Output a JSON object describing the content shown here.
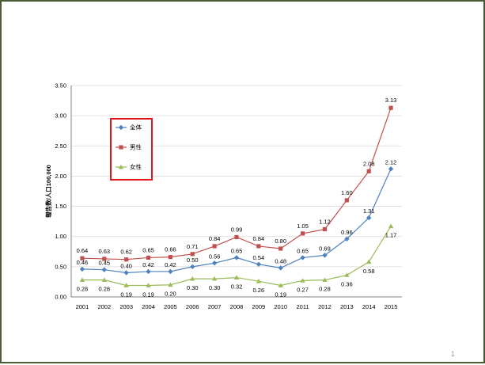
{
  "page_number": "1",
  "chart_data": {
    "type": "line",
    "ylabel": "報告数/人口100,000",
    "ylim": [
      0,
      3.5
    ],
    "ytick_labels": [
      "0.00",
      "0.50",
      "1.00",
      "1.50",
      "2.00",
      "2.50",
      "3.00",
      "3.50"
    ],
    "x": [
      "2001",
      "2002",
      "2003",
      "2004",
      "2005",
      "2006",
      "2007",
      "2008",
      "2009",
      "2010",
      "2011",
      "2012",
      "2013",
      "2014",
      "2015"
    ],
    "grid": true,
    "legend_position": "top-left",
    "series": [
      {
        "name": "全体",
        "color": "#4f81bd",
        "marker": "diamond",
        "values": [
          0.46,
          0.45,
          0.4,
          0.42,
          0.42,
          0.5,
          0.56,
          0.65,
          0.54,
          0.48,
          0.65,
          0.69,
          0.96,
          1.31,
          2.12
        ],
        "labels": [
          "0.46",
          "0.45",
          "0.40",
          "0.42",
          "0.42",
          "0.50",
          "0.56",
          "0.65",
          "0.54",
          "0.48",
          "0.65",
          "0.69",
          "0.96",
          "1.31",
          "2.12"
        ]
      },
      {
        "name": "男性",
        "color": "#c0504d",
        "marker": "square",
        "values": [
          0.64,
          0.63,
          0.62,
          0.65,
          0.66,
          0.71,
          0.84,
          0.99,
          0.84,
          0.8,
          1.05,
          1.12,
          1.6,
          2.08,
          3.13
        ],
        "labels": [
          "0.64",
          "0.63",
          "0.62",
          "0.65",
          "0.66",
          "0.71",
          "0.84",
          "0.99",
          "0.84",
          "0.80",
          "1.05",
          "1.12",
          "1.60",
          "2.08",
          "3.13"
        ]
      },
      {
        "name": "女性",
        "color": "#9bbb59",
        "marker": "triangle",
        "values": [
          0.28,
          0.28,
          0.19,
          0.19,
          0.2,
          0.3,
          0.3,
          0.32,
          0.26,
          0.19,
          0.27,
          0.28,
          0.36,
          0.58,
          1.17
        ],
        "labels": [
          "0.28",
          "0.28",
          "0.19",
          "0.19",
          "0.20",
          "0.30",
          "0.30",
          "0.32",
          "0.26",
          "0.19",
          "0.27",
          "0.28",
          "0.36",
          "0.58",
          "1.17"
        ]
      }
    ]
  }
}
